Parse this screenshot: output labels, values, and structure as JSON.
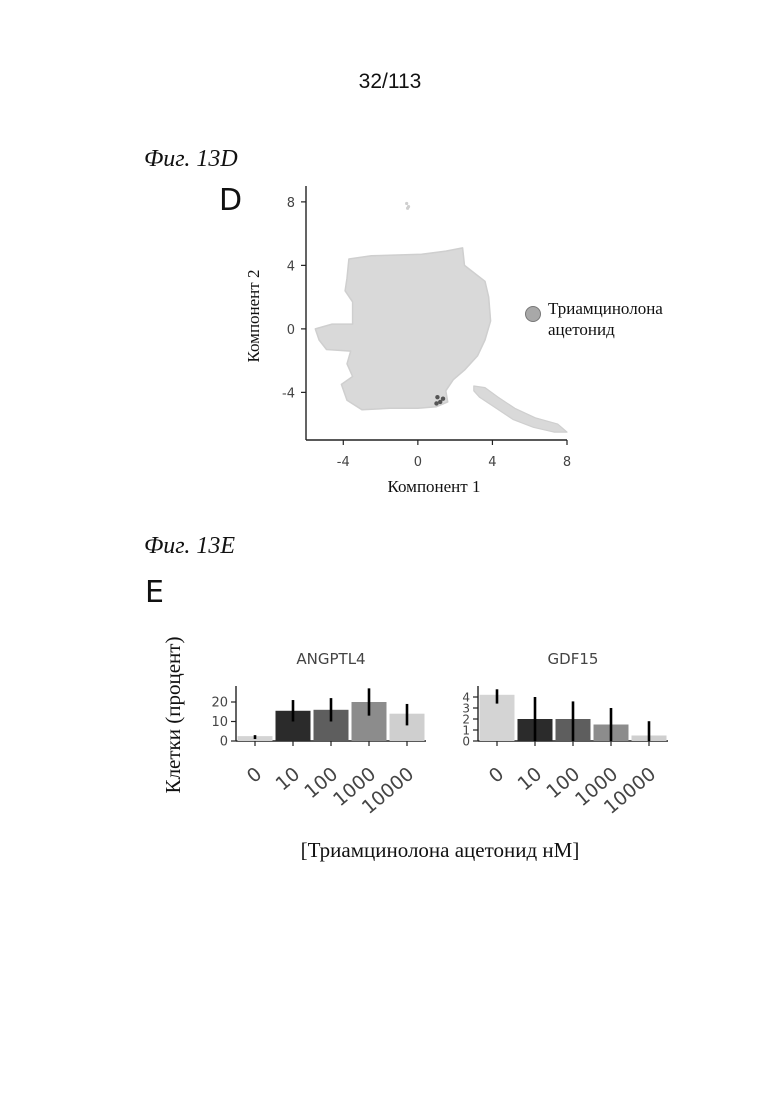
{
  "page_number": "32/113",
  "figures": {
    "fig_d_caption": "Фиг. 13D",
    "fig_e_caption": "Фиг. 13E",
    "panel_d_letter": "D",
    "panel_e_letter": "E"
  },
  "chart_data": [
    {
      "type": "scatter",
      "panel": "D",
      "xlabel": "Компонент 1",
      "ylabel": "Компонент 2",
      "xticks": [
        "-4",
        "0",
        "4",
        "8"
      ],
      "yticks": [
        "8",
        "4",
        "0",
        "-4"
      ],
      "xlim": [
        -6,
        8
      ],
      "ylim": [
        -7,
        9
      ],
      "legend": {
        "label_line1": "Триамцинолона",
        "label_line2": "ацетонид",
        "color": "#a8a8a8"
      },
      "legend_placement": "right",
      "point_color": "#d9d9d9",
      "highlight_color": "#555555",
      "cluster_outlines": {
        "main_cluster": [
          [
            -3.7,
            4.4
          ],
          [
            -2.5,
            4.6
          ],
          [
            0.2,
            4.7
          ],
          [
            1.5,
            4.9
          ],
          [
            2.4,
            5.1
          ],
          [
            2.5,
            4.0
          ],
          [
            3.6,
            3.0
          ],
          [
            3.8,
            2.0
          ],
          [
            3.9,
            0.5
          ],
          [
            3.6,
            -0.7
          ],
          [
            3.2,
            -1.7
          ],
          [
            2.5,
            -2.6
          ],
          [
            1.9,
            -3.2
          ],
          [
            1.5,
            -3.9
          ],
          [
            1.6,
            -4.6
          ],
          [
            1.0,
            -4.9
          ],
          [
            0.0,
            -5.0
          ],
          [
            -1.5,
            -5.0
          ],
          [
            -3.0,
            -5.1
          ],
          [
            -3.8,
            -4.5
          ],
          [
            -4.1,
            -3.5
          ],
          [
            -3.5,
            -3.0
          ],
          [
            -3.8,
            -2.2
          ],
          [
            -3.6,
            -1.4
          ],
          [
            -4.9,
            -1.3
          ],
          [
            -5.3,
            -0.7
          ],
          [
            -5.5,
            0.0
          ],
          [
            -4.6,
            0.3
          ],
          [
            -3.5,
            0.3
          ],
          [
            -3.5,
            1.7
          ],
          [
            -3.9,
            2.4
          ],
          [
            -3.8,
            3.2
          ]
        ],
        "tail_cluster": [
          [
            3.0,
            -3.6
          ],
          [
            3.6,
            -3.7
          ],
          [
            4.3,
            -4.3
          ],
          [
            5.2,
            -5.0
          ],
          [
            6.3,
            -5.6
          ],
          [
            7.5,
            -6.0
          ],
          [
            8.0,
            -6.5
          ],
          [
            7.3,
            -6.5
          ],
          [
            6.2,
            -6.2
          ],
          [
            5.1,
            -5.7
          ],
          [
            4.2,
            -5.0
          ],
          [
            3.3,
            -4.3
          ],
          [
            3.0,
            -3.9
          ]
        ],
        "top_points": [
          [
            -0.6,
            7.9
          ],
          [
            -0.5,
            7.7
          ],
          [
            -0.55,
            7.6
          ]
        ],
        "highlight_points": [
          [
            1.05,
            -4.3
          ],
          [
            1.2,
            -4.6
          ],
          [
            1.35,
            -4.4
          ],
          [
            1.0,
            -4.7
          ]
        ]
      }
    },
    {
      "type": "bar",
      "panel": "E",
      "title": "ANGPTL4",
      "categories": [
        "0",
        "10",
        "100",
        "1000",
        "10000"
      ],
      "values": [
        2.5,
        15.5,
        16.0,
        20.0,
        14.0
      ],
      "errors_low": [
        1.0,
        10.0,
        10.0,
        13.0,
        8.0
      ],
      "errors_high": [
        3.0,
        21.0,
        22.0,
        27.0,
        19.0
      ],
      "yticks": [
        0,
        10,
        20
      ],
      "ylim": [
        0,
        28
      ],
      "colors": [
        "#d4d4d4",
        "#2b2b2b",
        "#5e5e5e",
        "#8c8c8c",
        "#cfcfcf"
      ]
    },
    {
      "type": "bar",
      "panel": "E",
      "title": "GDF15",
      "categories": [
        "0",
        "10",
        "100",
        "1000",
        "10000"
      ],
      "values": [
        4.2,
        2.0,
        2.0,
        1.5,
        0.5
      ],
      "errors_low": [
        3.4,
        0.0,
        0.0,
        0.0,
        0.0
      ],
      "errors_high": [
        4.7,
        4.0,
        3.6,
        3.0,
        1.8
      ],
      "yticks": [
        0,
        1,
        2,
        3,
        4
      ],
      "ylim": [
        0,
        5
      ],
      "colors": [
        "#d4d4d4",
        "#2b2b2b",
        "#5e5e5e",
        "#8c8c8c",
        "#cfcfcf"
      ]
    }
  ],
  "panel_e_labels": {
    "ylabel": "Клетки (процент)",
    "xlabel": "[Триамцинолона ацетонид нМ]"
  }
}
